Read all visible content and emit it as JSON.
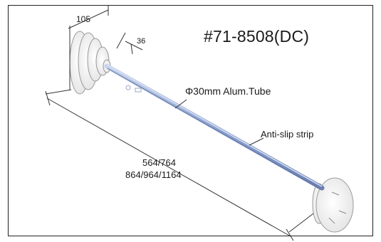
{
  "part_number": "#71-8508(DC)",
  "dimensions": {
    "end_width": "105",
    "hub_depth": "36",
    "tube_spec": "Φ30mm Alum.Tube",
    "lengths_line1": "564/764",
    "lengths_line2": "864/964/1164"
  },
  "callouts": {
    "anti_slip": "Anti-slip strip"
  },
  "colors": {
    "tube": "#9fb1d6",
    "tube_edge": "#6b80b0",
    "line": "#333333",
    "part_outline": "#9a9a9a"
  }
}
